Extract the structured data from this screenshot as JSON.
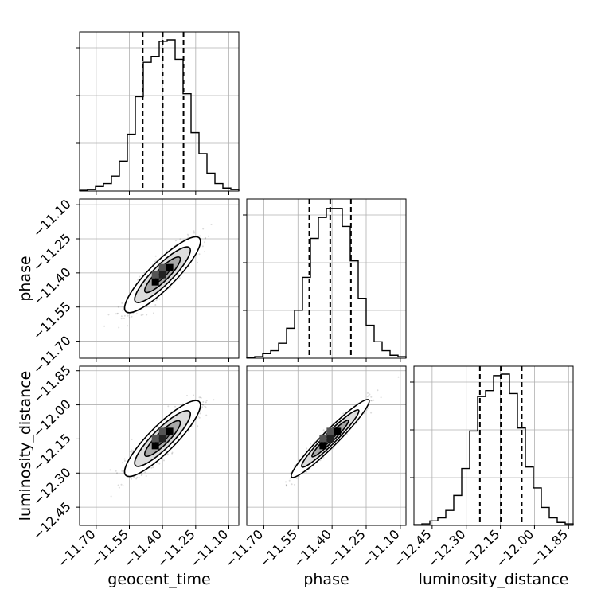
{
  "chart_data": {
    "type": "corner",
    "params": [
      "geocent_time",
      "phase",
      "luminosity_distance"
    ],
    "axis_labels": [
      "geocent_time",
      "phase",
      "luminosity_distance"
    ],
    "ranges": [
      [
        -11.775,
        -11.055
      ],
      [
        -11.775,
        -11.075
      ],
      [
        -12.53,
        -11.83
      ]
    ],
    "ticks": [
      {
        "values": [
          -11.7,
          -11.55,
          -11.4,
          -11.25,
          -11.1
        ],
        "labels": [
          "−11.70",
          "−11.55",
          "−11.40",
          "−11.25",
          "−11.10"
        ]
      },
      {
        "values": [
          -11.7,
          -11.55,
          -11.4,
          -11.25,
          -11.1
        ],
        "labels": [
          "−11.70",
          "−11.55",
          "−11.40",
          "−11.25",
          "−11.10"
        ]
      },
      {
        "values": [
          -12.45,
          -12.3,
          -12.15,
          -12.0,
          -11.85
        ],
        "labels": [
          "−12.45",
          "−12.30",
          "−12.15",
          "−12.00",
          "−11.85"
        ]
      }
    ],
    "quantiles": [
      [
        -11.4895,
        -11.399,
        -11.305
      ],
      [
        -11.5,
        -11.408,
        -11.317
      ],
      [
        -12.24,
        -12.148,
        -12.056
      ]
    ],
    "histograms": [
      {
        "param": "geocent_time",
        "counts": [
          0.005,
          0.01,
          0.03,
          0.05,
          0.1,
          0.2,
          0.38,
          0.63,
          0.86,
          0.9,
          1.0,
          1.01,
          0.88,
          0.65,
          0.39,
          0.25,
          0.12,
          0.05,
          0.02,
          0.01
        ]
      },
      {
        "param": "phase",
        "counts": [
          0.005,
          0.01,
          0.03,
          0.05,
          0.1,
          0.2,
          0.32,
          0.54,
          0.8,
          0.94,
          1.0,
          1.0,
          0.88,
          0.65,
          0.4,
          0.22,
          0.11,
          0.05,
          0.02,
          0.01
        ]
      },
      {
        "param": "luminosity_distance",
        "counts": [
          0.005,
          0.01,
          0.03,
          0.05,
          0.1,
          0.2,
          0.38,
          0.63,
          0.86,
          0.9,
          1.0,
          1.01,
          0.88,
          0.65,
          0.39,
          0.25,
          0.12,
          0.05,
          0.02,
          0.01
        ]
      }
    ],
    "correlations": [
      {
        "x": "geocent_time",
        "y": "phase",
        "center": [
          -11.4,
          -11.408
        ],
        "sigma": [
          0.07,
          0.07
        ],
        "rho": 0.88
      },
      {
        "x": "geocent_time",
        "y": "luminosity_distance",
        "center": [
          -11.4,
          -12.148
        ],
        "sigma": [
          0.07,
          0.07
        ],
        "rho": 0.88
      },
      {
        "x": "phase",
        "y": "luminosity_distance",
        "center": [
          -11.408,
          -12.148
        ],
        "sigma": [
          0.07,
          0.07
        ],
        "rho": 0.96
      }
    ],
    "grid": true,
    "legend": "none"
  }
}
